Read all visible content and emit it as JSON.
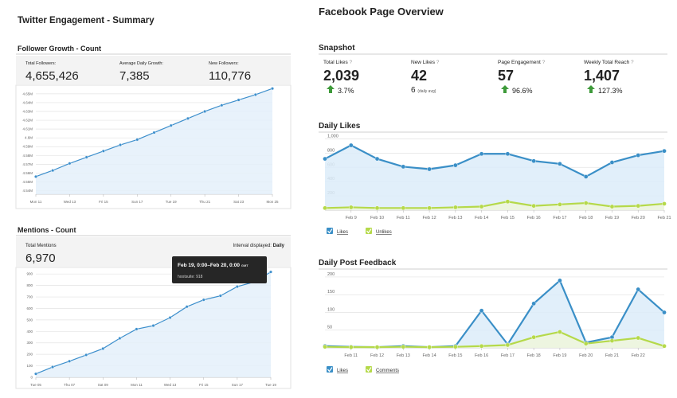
{
  "twitter": {
    "title": "Twitter Engagement - Summary",
    "follower": {
      "heading": "Follower Growth - Count",
      "stats": [
        {
          "label": "Total Followers:",
          "value": "4,655,426"
        },
        {
          "label": "Average Daily Growth:",
          "value": "7,385"
        },
        {
          "label": "New Followers:",
          "value": "110,776"
        }
      ]
    },
    "mentions": {
      "heading": "Mentions - Count",
      "stats": [
        {
          "label": "Total Mentions",
          "value": "6,970"
        }
      ],
      "interval_label": "Interval displayed:",
      "interval": "Daily",
      "tooltip": {
        "title": "Feb 19, 0:00–Feb 20, 0:00",
        "tz": "GMT",
        "series": "hootsuite:",
        "value": 918
      }
    }
  },
  "facebook": {
    "title": "Facebook Page Overview",
    "snapshot": {
      "heading": "Snapshot",
      "help": "?",
      "stats": [
        {
          "label": "Total Likes",
          "value": "2,039",
          "change": "3.7%"
        },
        {
          "label": "New Likes",
          "value": "42",
          "avg": "6",
          "avg_label": "(daily avg)"
        },
        {
          "label": "Page Engagement",
          "value": "57",
          "change": "96.6%"
        },
        {
          "label": "Weekly Total Reach",
          "value": "1,407",
          "change": "127.3%"
        }
      ]
    },
    "likes_heading": "Daily Likes",
    "feedback_heading": "Daily Post Feedback"
  },
  "chart_data": [
    {
      "type": "line",
      "categories": [
        "Mon 11",
        null,
        "Wed 13",
        null,
        "Fri 15",
        null,
        "Sun 17",
        null,
        "Tue 19",
        null,
        "Thu 21",
        null,
        "Sat 23",
        null,
        "Mon 25"
      ],
      "values": [
        4556000,
        4563000,
        4571000,
        4578000,
        4585000,
        4592000,
        4598000,
        4606000,
        4614000,
        4622000,
        4630000,
        4637000,
        4643000,
        4649000,
        4656000
      ],
      "color": "#3d8fcc",
      "ylim": [
        4536000,
        4658000
      ],
      "yticks": [
        {
          "value": 4540000,
          "label": "4.54M"
        },
        {
          "value": 4550000,
          "label": "4.55M"
        },
        {
          "value": 4560000,
          "label": "4.56M"
        },
        {
          "value": 4570000,
          "label": "4.57M"
        },
        {
          "value": 4580000,
          "label": "4.58M"
        },
        {
          "value": 4590000,
          "label": "4.59M"
        },
        {
          "value": 4600000,
          "label": "4.6M"
        },
        {
          "value": 4610000,
          "label": "4.61M"
        },
        {
          "value": 4620000,
          "label": "4.62M"
        },
        {
          "value": 4630000,
          "label": "4.63M"
        },
        {
          "value": 4640000,
          "label": "4.64M"
        },
        {
          "value": 4650000,
          "label": "4.65M"
        }
      ],
      "grid": true
    },
    {
      "type": "line",
      "categories": [
        "Tue 05",
        null,
        "Thu 07",
        null,
        "Sat 09",
        null,
        "Mon 11",
        null,
        "Wed 13",
        null,
        "Fri 15",
        null,
        "Sun 17",
        null,
        "Tue 19"
      ],
      "values": [
        30,
        90,
        140,
        195,
        250,
        340,
        420,
        450,
        520,
        615,
        675,
        710,
        790,
        830,
        918
      ],
      "color": "#3d8fcc",
      "ylim": [
        0,
        950
      ],
      "yticks": [
        0,
        100,
        200,
        300,
        400,
        500,
        600,
        700,
        800,
        900
      ],
      "grid": true
    },
    {
      "type": "line",
      "categories": [
        null,
        "Feb 9",
        "Feb 10",
        "Feb 11",
        "Feb 12",
        "Feb 13",
        "Feb 14",
        "Feb 15",
        "Feb 16",
        "Feb 17",
        "Feb 18",
        "Feb 19",
        "Feb 20",
        "Feb 21"
      ],
      "series": [
        {
          "name": "Likes",
          "color": "#3a8fc7",
          "values": [
            720,
            910,
            720,
            610,
            575,
            630,
            790,
            790,
            690,
            650,
            470,
            670,
            770,
            830
          ]
        },
        {
          "name": "Unlikes",
          "color": "#b5d94a",
          "values": [
            30,
            40,
            30,
            30,
            30,
            40,
            50,
            120,
            60,
            80,
            100,
            50,
            60,
            90
          ]
        }
      ],
      "ylim": [
        0,
        1050
      ],
      "yticks": [
        200,
        400,
        600,
        800,
        {
          "value": 1000,
          "label": "1,000"
        }
      ],
      "grid": true
    },
    {
      "type": "line",
      "categories": [
        null,
        "Feb 11",
        "Feb 12",
        "Feb 13",
        "Feb 14",
        "Feb 15",
        "Feb 16",
        "Feb 17",
        "Feb 18",
        "Feb 19",
        "Feb 20",
        "Feb 21",
        "Feb 22",
        null
      ],
      "series": [
        {
          "name": "Likes",
          "color": "#3a8fc7",
          "values": [
            5,
            3,
            2,
            5,
            2,
            5,
            105,
            10,
            125,
            190,
            15,
            30,
            165,
            100
          ]
        },
        {
          "name": "Comments",
          "color": "#b5d94a",
          "values": [
            3,
            2,
            2,
            3,
            2,
            3,
            5,
            8,
            30,
            45,
            12,
            20,
            28,
            5
          ]
        }
      ],
      "ylim": [
        0,
        210
      ],
      "yticks": [
        50,
        100,
        150,
        200
      ],
      "grid": true
    }
  ]
}
